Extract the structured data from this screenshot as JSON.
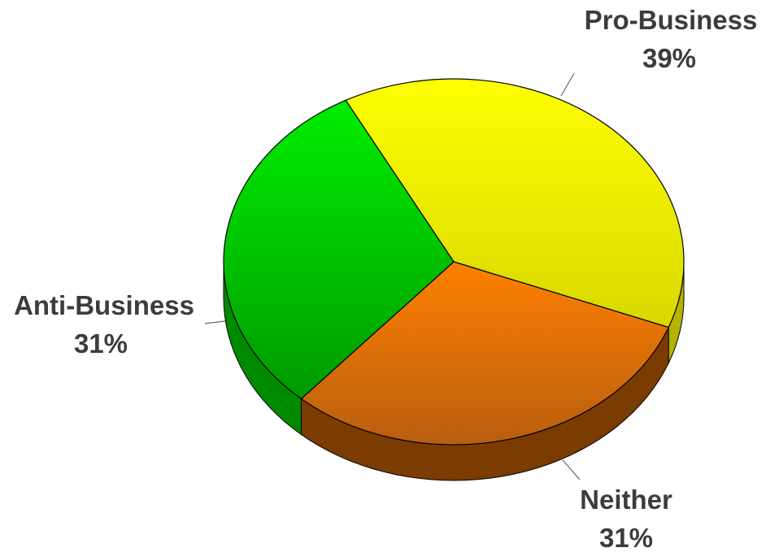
{
  "chart_data": {
    "type": "pie",
    "style": "3d",
    "categories": [
      "Pro-Business",
      "Neither",
      "Anti-Business"
    ],
    "values": [
      39,
      31,
      31
    ],
    "value_labels": [
      "39%",
      "31%",
      "31%"
    ],
    "colors": {
      "Pro-Business": "#ffff00",
      "Neither": "#ff8000",
      "Anti-Business": "#00ff00"
    },
    "legend": "none"
  }
}
